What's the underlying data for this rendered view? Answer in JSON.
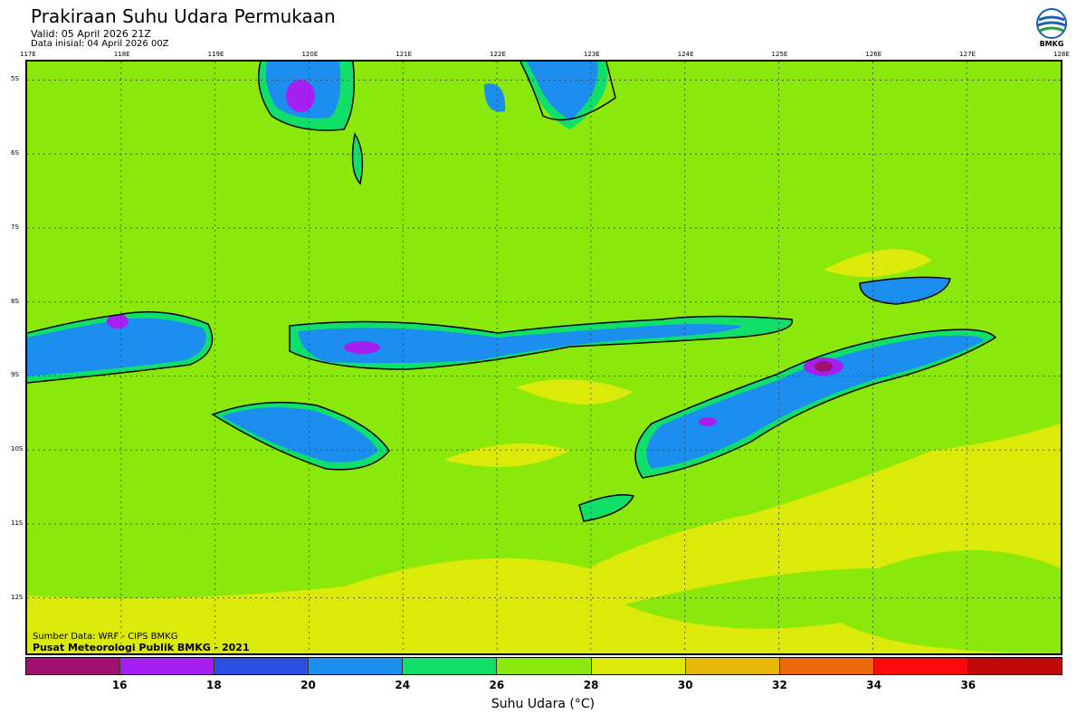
{
  "header": {
    "title": "Prakiraan Suhu Udara Permukaan",
    "valid": "Valid: 05 April 2026 21Z",
    "initial": "Data inisial: 04 April 2026 00Z"
  },
  "logo": {
    "label": "BMKG",
    "icon": "bmkg-logo-icon"
  },
  "map": {
    "lon_labels": [
      "117E",
      "118E",
      "119E",
      "120E",
      "121E",
      "122E",
      "123E",
      "124E",
      "125E",
      "126E",
      "127E",
      "128E"
    ],
    "lat_labels": [
      "5S",
      "6S",
      "7S",
      "8S",
      "9S",
      "10S",
      "11S",
      "12S"
    ],
    "lon_range": [
      117,
      128
    ],
    "lat_range": [
      -5,
      -13
    ],
    "grid": "dotted"
  },
  "footer": {
    "source": "Sumber Data: WRF - CIPS BMKG",
    "publisher": "Pusat Meteorologi Publik BMKG - 2021"
  },
  "colorbar": {
    "ticks": [
      "16",
      "18",
      "20",
      "24",
      "26",
      "28",
      "30",
      "32",
      "34",
      "36"
    ],
    "colors": [
      "#a0106e",
      "#a51ff0",
      "#2a4fe0",
      "#1c8ef0",
      "#10e06a",
      "#8ae80a",
      "#dcea0a",
      "#e6b80a",
      "#e8680a",
      "#f80a0a",
      "#c00a0a"
    ],
    "label": "Suhu Udara (°C)"
  }
}
